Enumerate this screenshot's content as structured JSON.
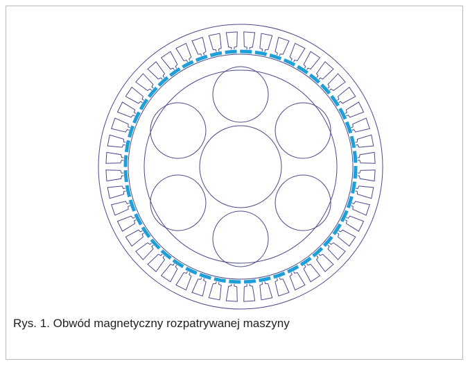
{
  "figure": {
    "caption": "Rys. 1. Obwód magnetyczny rozpatrywanej maszyny"
  }
}
